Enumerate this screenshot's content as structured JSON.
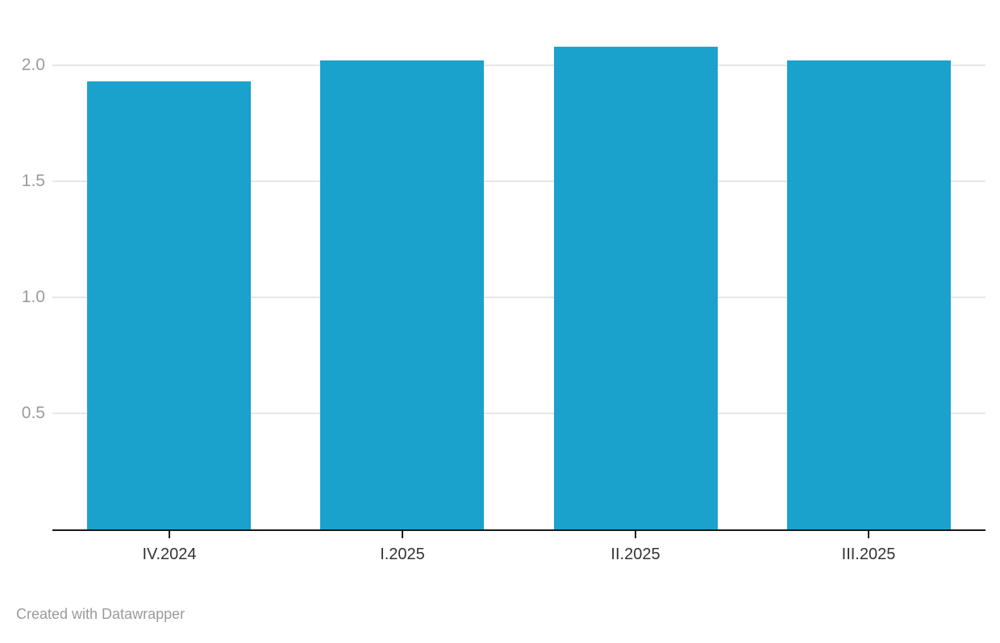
{
  "footer": {
    "attribution": "Created with Datawrapper"
  },
  "chart_data": {
    "type": "bar",
    "categories": [
      "IV.2024",
      "I.2025",
      "II.2025",
      "III.2025"
    ],
    "values": [
      1.93,
      2.02,
      2.08,
      2.02
    ],
    "title": "",
    "xlabel": "",
    "ylabel": "",
    "yticks": [
      0.5,
      1.0,
      1.5,
      2.0
    ],
    "ytick_labels": [
      "0.5",
      "1.0",
      "1.5",
      "2.0"
    ],
    "ylim": [
      0,
      2.28
    ],
    "grid": true,
    "legend": "none",
    "colors": {
      "bar": "#1aa2cd",
      "gridline": "#e6e6e6",
      "axis_line": "#18181b",
      "y_tick_label": "#9b9b9b",
      "x_tick_label": "#333333",
      "attribution": "#9b9b9b"
    }
  }
}
